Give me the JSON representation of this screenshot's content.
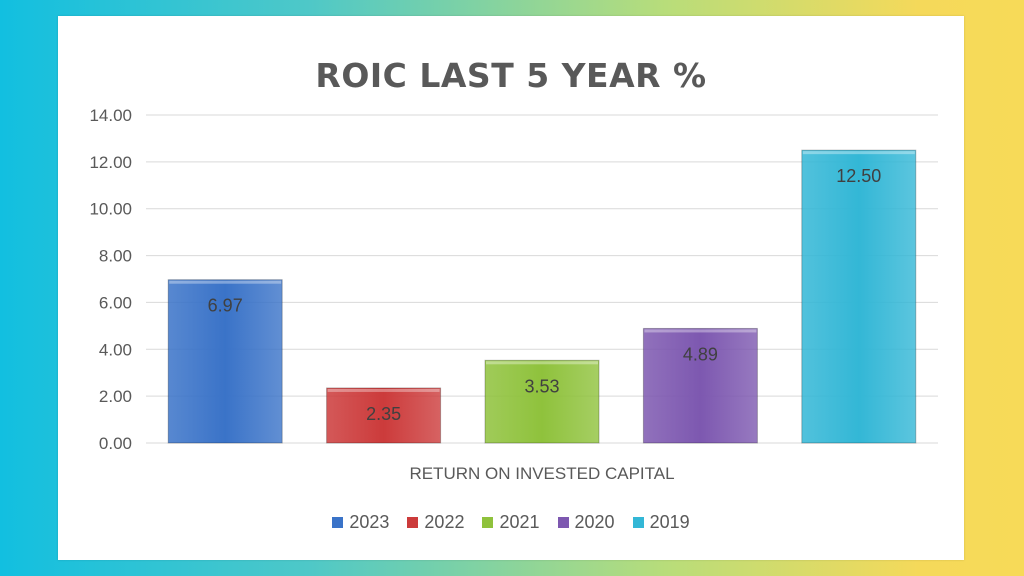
{
  "chart_data": {
    "type": "bar",
    "title": "ROIC LAST 5 YEAR %",
    "categories": [
      "RETURN ON INVESTED CAPITAL"
    ],
    "series": [
      {
        "name": "2023",
        "values": [
          6.97
        ],
        "color": "#3a73c8"
      },
      {
        "name": "2022",
        "values": [
          2.35
        ],
        "color": "#cc3b3b"
      },
      {
        "name": "2021",
        "values": [
          3.53
        ],
        "color": "#8fc23c"
      },
      {
        "name": "2020",
        "values": [
          4.89
        ],
        "color": "#7d58b0"
      },
      {
        "name": "2019",
        "values": [
          12.5
        ],
        "color": "#33b7d6"
      }
    ],
    "ylim": [
      0,
      14
    ],
    "yticks": [
      "0.00",
      "2.00",
      "4.00",
      "6.00",
      "8.00",
      "10.00",
      "12.00",
      "14.00"
    ],
    "data_labels": [
      "6.97",
      "2.35",
      "3.53",
      "4.89",
      "12.50"
    ],
    "grid": true,
    "legend_position": "bottom"
  }
}
